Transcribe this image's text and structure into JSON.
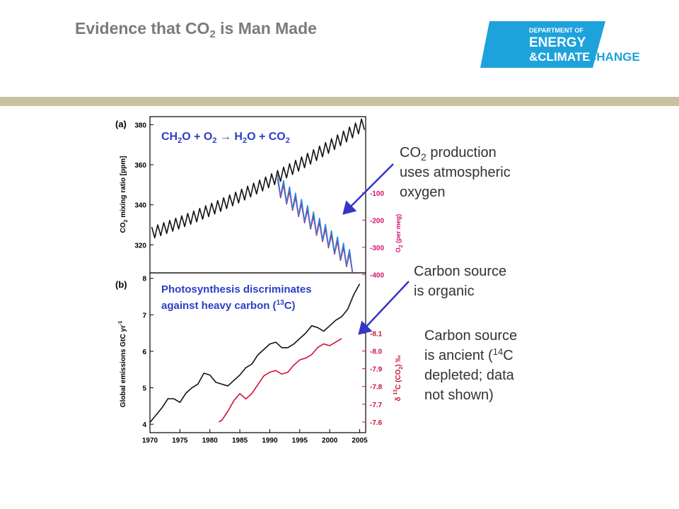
{
  "slide": {
    "title": [
      "Evidence that CO",
      "2",
      " is Man Made"
    ],
    "logo": [
      "DEPARTMENT OF",
      "ENERGY",
      "&CLIMATE",
      "CHANGE"
    ],
    "callouts": [
      {
        "lines": [
          [
            "CO",
            "2",
            " production"
          ],
          [
            "uses atmospheric"
          ],
          [
            "oxygen"
          ]
        ]
      },
      {
        "lines": [
          [
            "Carbon source"
          ],
          [
            "is organic"
          ]
        ]
      },
      {
        "lines": [
          [
            "Carbon source"
          ],
          [
            "is ancient (",
            "14",
            "C"
          ],
          [
            "depleted; data"
          ],
          [
            "not shown)"
          ]
        ]
      }
    ]
  },
  "chart_data": [
    {
      "type": "line",
      "panel_label": "(a)",
      "annotation": [
        "CH",
        "2",
        "O + O",
        "2",
        " → H",
        "2",
        "O + CO",
        "2"
      ],
      "ylabel": [
        "CO",
        "2",
        " mixing ratio [ppm]"
      ],
      "y2label": [
        "O",
        "2",
        " (per meg)"
      ],
      "y2_color": "#d4106e",
      "xlim": [
        1970,
        2006
      ],
      "ylim": [
        306,
        384
      ],
      "yticks": [
        320,
        340,
        360,
        380
      ],
      "y2lim": [
        -394,
        180
      ],
      "y2ticks": [
        -100,
        -200,
        -300,
        -400
      ],
      "series": [
        {
          "color": "#111111",
          "x": [
            1970.3,
            1970.8,
            1971.3,
            1971.8,
            1972.3,
            1972.8,
            1973.3,
            1973.8,
            1974.3,
            1974.8,
            1975.3,
            1975.8,
            1976.3,
            1976.8,
            1977.3,
            1977.8,
            1978.3,
            1978.8,
            1979.3,
            1979.8,
            1980.3,
            1980.8,
            1981.3,
            1981.8,
            1982.3,
            1982.8,
            1983.3,
            1983.8,
            1984.3,
            1984.8,
            1985.3,
            1985.8,
            1986.3,
            1986.8,
            1987.3,
            1987.8,
            1988.3,
            1988.8,
            1989.3,
            1989.8,
            1990.3,
            1990.8,
            1991.3,
            1991.8,
            1992.3,
            1992.8,
            1993.3,
            1993.8,
            1994.3,
            1994.8,
            1995.3,
            1995.8,
            1996.3,
            1996.8,
            1997.3,
            1997.8,
            1998.3,
            1998.8,
            1999.3,
            1999.8,
            2000.3,
            2000.8,
            2001.3,
            2001.8,
            2002.3,
            2002.8,
            2003.3,
            2003.8,
            2004.3,
            2004.8,
            2005.3,
            2005.8
          ],
          "values": [
            328.9,
            323.5,
            330.0,
            324.6,
            331.1,
            325.7,
            332.2,
            326.8,
            333.3,
            327.9,
            334.5,
            329.1,
            335.7,
            330.3,
            336.9,
            331.5,
            338.2,
            332.8,
            339.5,
            334.1,
            340.8,
            335.4,
            342.1,
            336.7,
            343.5,
            338.1,
            344.9,
            339.5,
            346.3,
            340.9,
            347.8,
            342.4,
            349.3,
            343.9,
            350.8,
            345.4,
            352.3,
            346.9,
            353.9,
            348.5,
            355.5,
            350.1,
            357.1,
            351.7,
            358.8,
            353.4,
            360.5,
            355.1,
            362.2,
            356.8,
            363.9,
            358.5,
            365.7,
            360.3,
            367.5,
            362.1,
            369.3,
            363.9,
            371.1,
            365.7,
            373.0,
            367.6,
            374.9,
            369.5,
            376.8,
            371.4,
            378.8,
            373.4,
            380.8,
            375.4,
            382.8,
            377.4
          ]
        },
        {
          "color": "#d4106e",
          "axis": "y2",
          "x": [
            1991.3,
            1991.8,
            1992.3,
            1992.8,
            1993.3,
            1993.8,
            1994.3,
            1994.8,
            1995.3,
            1995.8,
            1996.3,
            1996.8,
            1997.3,
            1997.8,
            1998.3,
            1998.8,
            1999.3,
            1999.8,
            2000.3,
            2000.8,
            2001.3,
            2001.8,
            2002.3,
            2002.8,
            2003.3,
            2003.8
          ],
          "values": [
            -47,
            -118,
            -70,
            -141,
            -93,
            -164,
            -116,
            -187,
            -139,
            -210,
            -162,
            -233,
            -185,
            -256,
            -208,
            -279,
            -231,
            -302,
            -254,
            -325,
            -277,
            -348,
            -300,
            -371,
            -323,
            -394
          ]
        },
        {
          "color": "#2a86d6",
          "axis": "y2",
          "x": [
            1991.3,
            1991.8,
            1992.3,
            1992.8,
            1993.3,
            1993.8,
            1994.3,
            1994.8,
            1995.3,
            1995.8,
            1996.3,
            1996.8,
            1997.3,
            1997.8,
            1998.3,
            1998.8,
            1999.3,
            1999.8,
            2000.3,
            2000.8,
            2001.3,
            2001.8,
            2002.3,
            2002.8,
            2003.3,
            2003.8
          ],
          "values": [
            -32,
            -113,
            -55,
            -136,
            -78,
            -159,
            -101,
            -182,
            -124,
            -205,
            -147,
            -228,
            -170,
            -251,
            -193,
            -274,
            -216,
            -297,
            -239,
            -320,
            -262,
            -343,
            -285,
            -366,
            -308,
            -389
          ]
        }
      ]
    },
    {
      "type": "line",
      "panel_label": "(b)",
      "annotation": [
        [
          "Photosynthesis discriminates"
        ],
        [
          "against heavy carbon (",
          "13",
          "C)"
        ]
      ],
      "ylabel": [
        "Global emissions GtC yr",
        "-1"
      ],
      "y2label": [
        "δ ",
        "13",
        "C (CO",
        "2",
        ") ‰"
      ],
      "y2_color": "#d0103a",
      "xlim": [
        1970,
        2006
      ],
      "xticks": [
        1970,
        1975,
        1980,
        1985,
        1990,
        1995,
        2000,
        2005
      ],
      "ylim": [
        3.77,
        8.15
      ],
      "yticks": [
        4,
        5,
        6,
        7,
        8
      ],
      "y2lim": [
        -7.54,
        -8.44
      ],
      "y2ticks": [
        -8.1,
        {
          "value": -8,
          "label": "-8.0"
        },
        -7.9,
        -7.8,
        -7.7,
        -7.6
      ],
      "series": [
        {
          "color": "#111111",
          "x": [
            1970,
            1971,
            1972,
            1973,
            1974,
            1975,
            1976,
            1977,
            1978,
            1979,
            1980,
            1981,
            1982,
            1983,
            1984,
            1985,
            1986,
            1987,
            1988,
            1989,
            1990,
            1991,
            1992,
            1993,
            1994,
            1995,
            1996,
            1997,
            1998,
            1999,
            2000,
            2001,
            2002,
            2003,
            2004,
            2005
          ],
          "values": [
            4.05,
            4.25,
            4.45,
            4.7,
            4.7,
            4.6,
            4.85,
            5.0,
            5.1,
            5.4,
            5.35,
            5.15,
            5.1,
            5.05,
            5.2,
            5.35,
            5.55,
            5.65,
            5.9,
            6.05,
            6.2,
            6.25,
            6.1,
            6.1,
            6.2,
            6.35,
            6.5,
            6.7,
            6.65,
            6.55,
            6.7,
            6.85,
            6.95,
            7.15,
            7.55,
            7.85
          ]
        },
        {
          "color": "#d0103a",
          "axis": "y2",
          "x": [
            1981.5,
            1982,
            1983,
            1984,
            1985,
            1986,
            1987,
            1988,
            1989,
            1990,
            1991,
            1992,
            1993,
            1994,
            1995,
            1996,
            1997,
            1998,
            1999,
            2000,
            2001,
            2002
          ],
          "values": [
            -7.6,
            -7.61,
            -7.66,
            -7.72,
            -7.76,
            -7.73,
            -7.76,
            -7.81,
            -7.86,
            -7.88,
            -7.89,
            -7.87,
            -7.88,
            -7.92,
            -7.95,
            -7.96,
            -7.98,
            -8.02,
            -8.04,
            -8.03,
            -8.05,
            -8.07
          ]
        }
      ]
    }
  ]
}
